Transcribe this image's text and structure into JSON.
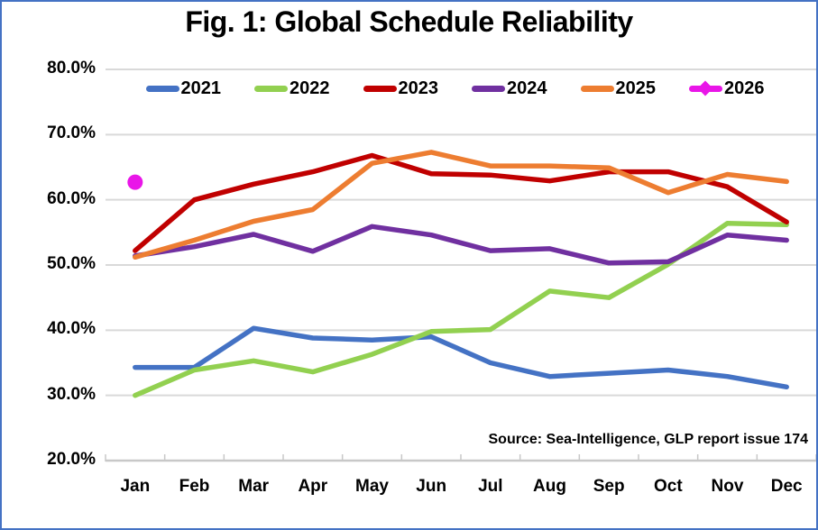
{
  "chart_data": {
    "type": "line",
    "title": "Fig. 1: Global Schedule Reliability",
    "annotation": "Source: Sea-Intelligence, GLP report issue 174",
    "xlabel": "",
    "ylabel": "",
    "ylim": [
      20,
      80
    ],
    "grid": "horizontal",
    "legend_position": "top",
    "y_ticks": [
      "80.0%",
      "70.0%",
      "60.0%",
      "50.0%",
      "40.0%",
      "30.0%",
      "20.0%"
    ],
    "categories": [
      "Jan",
      "Feb",
      "Mar",
      "Apr",
      "May",
      "Jun",
      "Jul",
      "Aug",
      "Sep",
      "Oct",
      "Nov",
      "Dec"
    ],
    "series": [
      {
        "name": "2021",
        "color": "#4472C4",
        "marker": "none",
        "values": [
          34.3,
          34.3,
          40.3,
          38.8,
          38.5,
          39.0,
          35.0,
          32.9,
          33.4,
          33.9,
          32.9,
          31.3
        ]
      },
      {
        "name": "2022",
        "color": "#92D050",
        "marker": "none",
        "values": [
          30.0,
          33.9,
          35.3,
          33.6,
          36.3,
          39.8,
          40.1,
          46.0,
          45.0,
          50.1,
          56.4,
          56.2
        ]
      },
      {
        "name": "2023",
        "color": "#C00000",
        "marker": "none",
        "values": [
          52.2,
          60.0,
          62.4,
          64.3,
          66.8,
          64.0,
          63.8,
          62.9,
          64.3,
          64.3,
          62.0,
          56.6
        ]
      },
      {
        "name": "2024",
        "color": "#7030A0",
        "marker": "none",
        "values": [
          51.4,
          52.8,
          54.7,
          52.1,
          55.9,
          54.6,
          52.2,
          52.5,
          50.3,
          50.5,
          54.6,
          53.8
        ]
      },
      {
        "name": "2025",
        "color": "#ED7D31",
        "marker": "none",
        "values": [
          51.2,
          53.8,
          56.7,
          58.5,
          65.6,
          67.3,
          65.2,
          65.2,
          64.9,
          61.1,
          63.9,
          62.8
        ]
      },
      {
        "name": "2026",
        "color": "#E916E8",
        "marker": "diamond",
        "values": [
          62.7,
          null,
          null,
          null,
          null,
          null,
          null,
          null,
          null,
          null,
          null,
          null
        ]
      }
    ]
  },
  "style_colors": {
    "frame_border": "#4472C4",
    "gridline": "#D9D9D9",
    "axis_line": "#C8C8C8",
    "text": "#000000"
  }
}
